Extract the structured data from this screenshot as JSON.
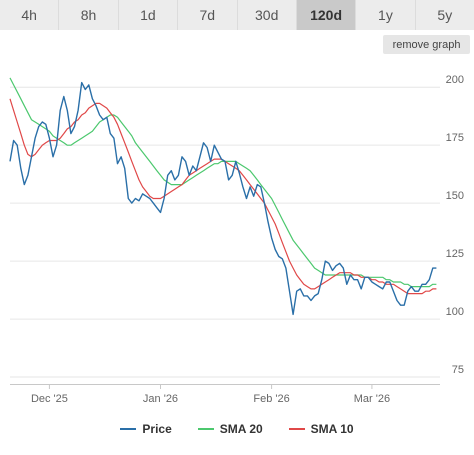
{
  "tabs": [
    {
      "label": "4h",
      "active": false
    },
    {
      "label": "8h",
      "active": false
    },
    {
      "label": "1d",
      "active": false
    },
    {
      "label": "7d",
      "active": false
    },
    {
      "label": "30d",
      "active": false
    },
    {
      "label": "120d",
      "active": true
    },
    {
      "label": "1y",
      "active": false
    },
    {
      "label": "5y",
      "active": false
    }
  ],
  "remove_graph_label": "remove graph",
  "chart_data": {
    "type": "line",
    "title": "",
    "xlabel": "",
    "ylabel": "",
    "x_ticks": [
      {
        "label": "Dec '25",
        "day": 11
      },
      {
        "label": "Jan '26",
        "day": 42
      },
      {
        "label": "Feb '26",
        "day": 73
      },
      {
        "label": "Mar '26",
        "day": 101
      }
    ],
    "y_ticks": [
      75,
      100,
      125,
      150,
      175,
      200
    ],
    "ylim": [
      72,
      210
    ],
    "xlim": [
      0,
      120
    ],
    "grid": true,
    "legend": "bottom",
    "series": [
      {
        "name": "Price",
        "color": "#2a6fa8",
        "values": [
          168,
          177,
          175,
          165,
          158,
          162,
          170,
          178,
          183,
          185,
          184,
          178,
          170,
          175,
          190,
          196,
          190,
          180,
          183,
          190,
          202,
          199,
          201,
          195,
          192,
          188,
          186,
          187,
          180,
          178,
          167,
          170,
          165,
          152,
          150,
          152,
          151,
          154,
          153,
          152,
          150,
          148,
          146,
          152,
          162,
          164,
          160,
          162,
          170,
          168,
          162,
          166,
          164,
          170,
          176,
          174,
          168,
          175,
          172,
          169,
          168,
          160,
          162,
          168,
          163,
          157,
          152,
          157,
          153,
          158,
          157,
          150,
          142,
          135,
          130,
          127,
          126,
          122,
          112,
          102,
          112,
          113,
          110,
          110,
          108,
          110,
          111,
          117,
          125,
          124,
          121,
          123,
          124,
          122,
          115,
          119,
          117,
          117,
          113,
          118,
          118,
          116,
          115,
          114,
          113,
          116,
          116,
          112,
          108,
          106,
          106,
          112,
          114,
          112,
          112,
          115,
          115,
          117,
          122,
          122
        ]
      },
      {
        "name": "SMA 20",
        "color": "#4cc86e",
        "values": [
          204,
          201,
          198,
          195,
          192,
          189,
          186,
          185,
          184,
          183,
          182,
          181,
          179,
          178,
          177,
          176,
          175,
          175,
          176,
          177,
          178,
          179,
          180,
          181,
          183,
          185,
          186,
          187,
          188,
          188,
          187,
          185,
          183,
          181,
          179,
          176,
          174,
          172,
          170,
          168,
          166,
          164,
          162,
          160,
          159,
          158,
          158,
          158,
          158,
          159,
          160,
          161,
          162,
          163,
          164,
          165,
          166,
          167,
          167,
          168,
          168,
          168,
          168,
          168,
          167,
          166,
          165,
          164,
          162,
          160,
          158,
          156,
          154,
          152,
          149,
          146,
          143,
          140,
          137,
          134,
          132,
          130,
          128,
          126,
          124,
          122,
          121,
          120,
          119,
          119,
          119,
          119,
          119,
          119,
          119,
          119,
          119,
          119,
          119,
          118,
          118,
          118,
          118,
          118,
          118,
          117,
          117,
          116,
          116,
          116,
          115,
          115,
          114,
          114,
          114,
          114,
          114,
          114,
          115,
          115
        ]
      },
      {
        "name": "SMA 10",
        "color": "#e04848",
        "values": [
          195,
          190,
          185,
          180,
          175,
          171,
          170,
          171,
          173,
          175,
          176,
          177,
          177,
          177,
          178,
          180,
          182,
          183,
          185,
          186,
          188,
          189,
          191,
          192,
          193,
          193,
          192,
          191,
          189,
          187,
          184,
          180,
          176,
          172,
          168,
          164,
          160,
          157,
          155,
          153,
          152,
          152,
          152,
          153,
          154,
          155,
          156,
          157,
          158,
          160,
          162,
          163,
          164,
          165,
          166,
          167,
          168,
          169,
          169,
          169,
          168,
          167,
          166,
          165,
          164,
          162,
          160,
          158,
          156,
          154,
          152,
          150,
          147,
          144,
          141,
          137,
          133,
          129,
          125,
          122,
          119,
          117,
          115,
          114,
          113,
          113,
          114,
          115,
          116,
          117,
          118,
          119,
          120,
          120,
          120,
          120,
          119,
          119,
          118,
          118,
          118,
          117,
          117,
          116,
          116,
          115,
          115,
          115,
          114,
          113,
          112,
          111,
          111,
          111,
          111,
          111,
          112,
          112,
          113,
          113
        ]
      }
    ]
  }
}
